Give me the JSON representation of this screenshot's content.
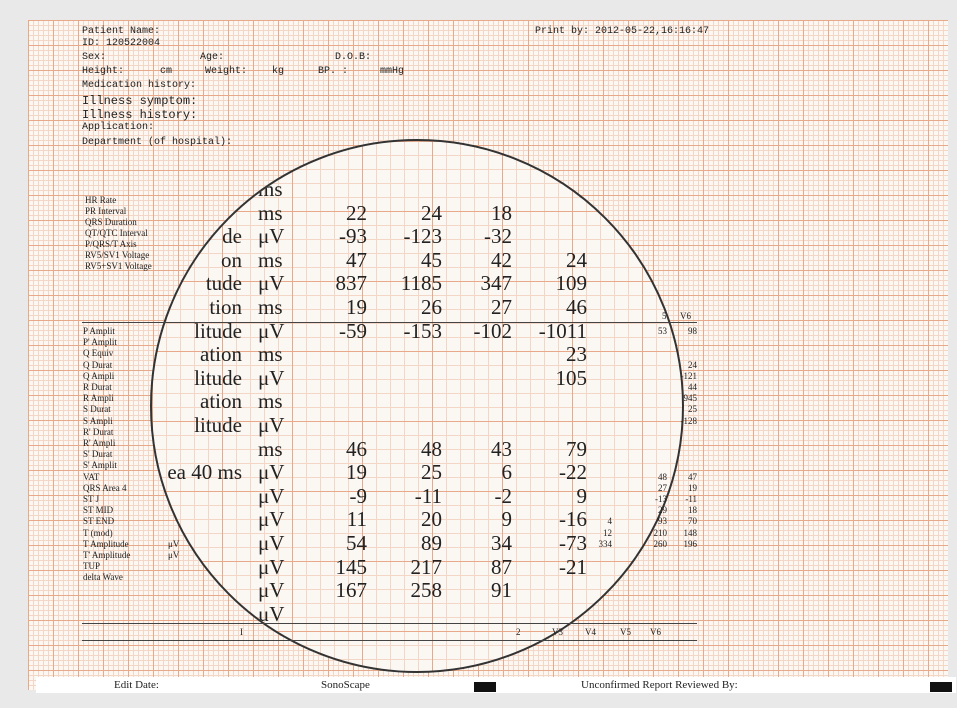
{
  "header": {
    "patient_name": "Patient Name:",
    "id": "ID: 120522004",
    "print_by": "Print by: 2012-05-22,16:16:47",
    "sex": "Sex:",
    "age": "Age:",
    "dob": "D.O.B:",
    "height": "Height:",
    "cm": "cm",
    "weight": "Weight:",
    "kg": "kg",
    "bp": "BP.  :",
    "mmhg": "mmHg",
    "medication": "Medication history:",
    "illness_symptom": "Illness symptom:",
    "illness_history": "Illness history:",
    "application": "Application:",
    "department": "Department (of hospital):"
  },
  "measurements": [
    "HR Rate",
    "PR Interval",
    "QRS Duration",
    "QT/QTC Interval",
    "P/QRS/T Axis",
    "RV5/SV1 Voltage",
    "RV5+SV1 Voltage"
  ],
  "table": {
    "header": [
      "5",
      "V6"
    ],
    "rows": [
      {
        "label": "P Amplit",
        "v5": "53",
        "v6": "98"
      },
      {
        "label": "P' Amplit"
      },
      {
        "label": "Q Equiv"
      },
      {
        "label": "Q Durat",
        "v6": "24"
      },
      {
        "label": "Q Ampli",
        "v6": "-121"
      },
      {
        "label": "R Durat",
        "v6": "44"
      },
      {
        "label": "R Ampli",
        "v6": "945"
      },
      {
        "label": "S Durat",
        "v6": "25"
      },
      {
        "label": "S Ampli",
        "v6": "-128"
      },
      {
        "label": "R' Durat"
      },
      {
        "label": "R' Ampli"
      },
      {
        "label": "S' Durat"
      },
      {
        "label": "S' Amplit"
      },
      {
        "label": "VAT",
        "v5": "48",
        "v6": "47"
      },
      {
        "label": "QRS Area 4",
        "v5": "27",
        "v6": "19"
      },
      {
        "label": "ST J",
        "v5": "-13",
        "v6": "-11"
      },
      {
        "label": "ST MID",
        "v5": "29",
        "v6": "18"
      },
      {
        "label": "ST END",
        "v4": "4",
        "v5": "93",
        "v6": "70"
      },
      {
        "label": "T (mod)",
        "v4": "12",
        "v5": "210",
        "v6": "148"
      },
      {
        "label": "T Amplitude",
        "unit": "μV",
        "v4": "334",
        "v5": "260",
        "v6": "196"
      },
      {
        "label": "T' Amplitude",
        "unit": "μV"
      },
      {
        "label": "TUP"
      },
      {
        "label": "delta Wave"
      }
    ],
    "footer": [
      "I",
      "2",
      "V3",
      "V4",
      "V5",
      "V6"
    ]
  },
  "magnifier": {
    "rows": [
      {
        "unit": "ms"
      },
      {
        "unit": "ms",
        "values": [
          "22",
          "24",
          "18"
        ]
      },
      {
        "label": "de",
        "unit": "μV",
        "values": [
          "-93",
          "-123",
          "-32"
        ]
      },
      {
        "label": "on",
        "unit": "ms",
        "values": [
          "47",
          "45",
          "42",
          "24"
        ]
      },
      {
        "label": "tude",
        "unit": "μV",
        "values": [
          "837",
          "1185",
          "347",
          "109"
        ]
      },
      {
        "label": "tion",
        "unit": "ms",
        "values": [
          "19",
          "26",
          "27",
          "46"
        ]
      },
      {
        "label": "litude",
        "unit": "μV",
        "values": [
          "-59",
          "-153",
          "-102",
          "-1011"
        ]
      },
      {
        "label": "ation",
        "unit": "ms",
        "values": [
          null,
          null,
          null,
          "23"
        ]
      },
      {
        "label": "litude",
        "unit": "μV",
        "values": [
          null,
          null,
          null,
          "105"
        ]
      },
      {
        "label": "ation",
        "unit": "ms"
      },
      {
        "label": "litude",
        "unit": "μV"
      },
      {
        "unit": "ms",
        "values": [
          "46",
          "48",
          "43",
          "79"
        ]
      },
      {
        "label": "ea 40 ms",
        "unit": "μV",
        "values": [
          "19",
          "25",
          "6",
          "-22"
        ]
      },
      {
        "unit": "μV",
        "values": [
          "-9",
          "-11",
          "-2",
          "9"
        ]
      },
      {
        "unit": "μV",
        "values": [
          "11",
          "20",
          "9",
          "-16"
        ]
      },
      {
        "unit": "μV",
        "values": [
          "54",
          "89",
          "34",
          "-73"
        ]
      },
      {
        "unit": "μV",
        "values": [
          "145",
          "217",
          "87",
          "-21"
        ]
      },
      {
        "unit": "μV",
        "values": [
          "167",
          "258",
          "91"
        ]
      },
      {
        "unit": "μV"
      }
    ]
  },
  "footer": {
    "edit_date": "Edit Date:",
    "brand": "SonoScape",
    "reviewed": "Unconfirmed Report Reviewed By:"
  }
}
